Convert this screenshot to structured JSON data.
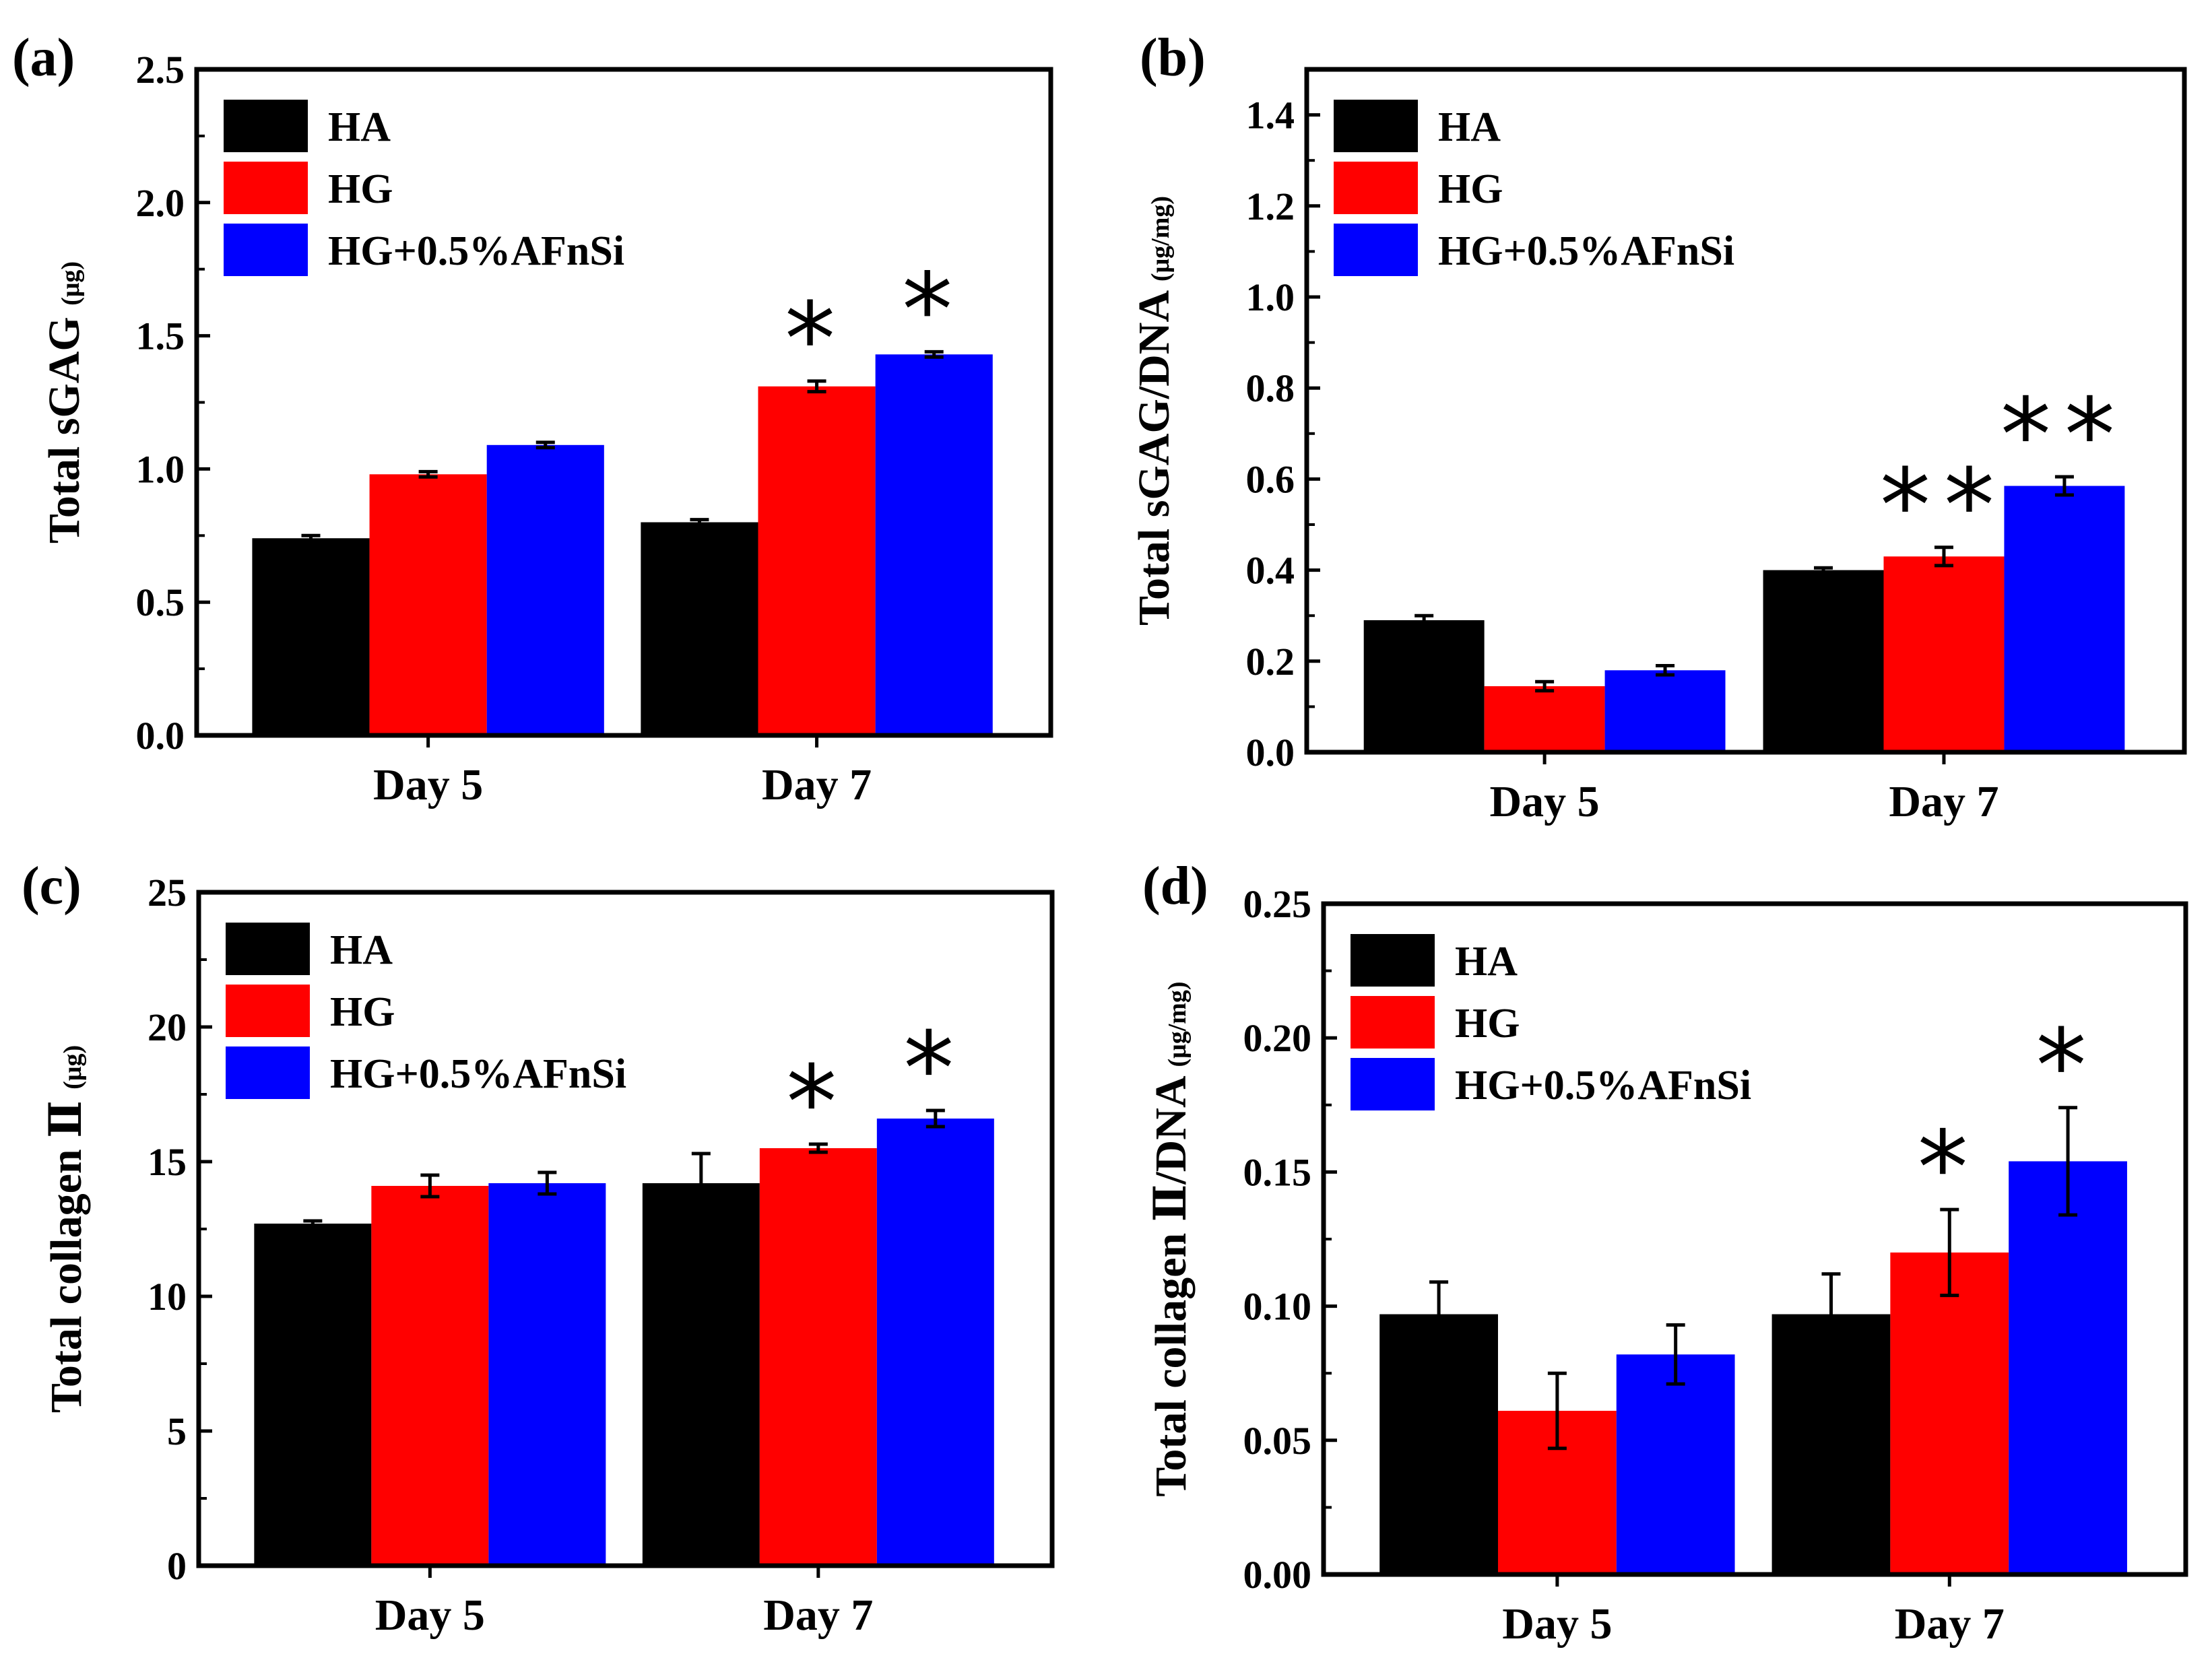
{
  "figure": {
    "legend_labels": [
      "HA",
      "HG",
      "HG+0.5%AFnSi"
    ],
    "series_colors": [
      "#000000",
      "#ff0000",
      "#0000ff"
    ]
  },
  "chart_data": [
    {
      "panel_label": "(a)",
      "type": "bar",
      "categories": [
        "Day 5",
        "Day 7"
      ],
      "series": [
        {
          "name": "HA",
          "values": [
            0.74,
            0.8
          ],
          "errors": [
            0.01,
            0.01
          ]
        },
        {
          "name": "HG",
          "values": [
            0.98,
            1.31
          ],
          "errors": [
            0.01,
            0.02
          ]
        },
        {
          "name": "HG+0.5%AFnSi",
          "values": [
            1.09,
            1.43
          ],
          "errors": [
            0.01,
            0.01
          ]
        }
      ],
      "annotations": [
        {
          "category": "Day 7",
          "series": "HG",
          "text": "*"
        },
        {
          "category": "Day 7",
          "series": "HG+0.5%AFnSi",
          "text": "*"
        }
      ],
      "ylabel": "Total sGAG",
      "ylabel_unit": "(μg)",
      "ylim": [
        0,
        2.5
      ],
      "yticks": [
        "0.0",
        "0.5",
        "1.0",
        "1.5",
        "2.0",
        "2.5"
      ],
      "legend": "top-left"
    },
    {
      "panel_label": "(b)",
      "type": "bar",
      "categories": [
        "Day 5",
        "Day 7"
      ],
      "series": [
        {
          "name": "HA",
          "values": [
            0.29,
            0.4
          ],
          "errors": [
            0.01,
            0.005
          ]
        },
        {
          "name": "HG",
          "values": [
            0.145,
            0.43
          ],
          "errors": [
            0.01,
            0.02
          ]
        },
        {
          "name": "HG+0.5%AFnSi",
          "values": [
            0.18,
            0.585
          ],
          "errors": [
            0.01,
            0.02
          ]
        }
      ],
      "annotations": [
        {
          "category": "Day 7",
          "series": "HG",
          "text": "**"
        },
        {
          "category": "Day 7",
          "series": "HG+0.5%AFnSi",
          "text": "**"
        }
      ],
      "ylabel": "Total sGAG/DNA",
      "ylabel_unit": "(μg/mg)",
      "ylim": [
        0,
        1.5
      ],
      "yticks": [
        "0.0",
        "0.2",
        "0.4",
        "0.6",
        "0.8",
        "1.0",
        "1.2",
        "1.4"
      ],
      "legend": "top-left"
    },
    {
      "panel_label": "(c)",
      "type": "bar",
      "categories": [
        "Day 5",
        "Day 7"
      ],
      "series": [
        {
          "name": "HA",
          "values": [
            12.7,
            14.2
          ],
          "errors": [
            0.1,
            1.1
          ]
        },
        {
          "name": "HG",
          "values": [
            14.1,
            15.5
          ],
          "errors": [
            0.4,
            0.15
          ]
        },
        {
          "name": "HG+0.5%AFnSi",
          "values": [
            14.2,
            16.6
          ],
          "errors": [
            0.4,
            0.3
          ]
        }
      ],
      "annotations": [
        {
          "category": "Day 7",
          "series": "HG",
          "text": "*"
        },
        {
          "category": "Day 7",
          "series": "HG+0.5%AFnSi",
          "text": "*"
        }
      ],
      "ylabel": "Total collagen Ⅱ",
      "ylabel_unit": "(μg)",
      "ylim": [
        0,
        25
      ],
      "yticks": [
        "0",
        "5",
        "10",
        "15",
        "20",
        "25"
      ],
      "legend": "top-left"
    },
    {
      "panel_label": "(d)",
      "type": "bar",
      "categories": [
        "Day 5",
        "Day 7"
      ],
      "series": [
        {
          "name": "HA",
          "values": [
            0.097,
            0.097
          ],
          "errors": [
            0.012,
            0.015
          ]
        },
        {
          "name": "HG",
          "values": [
            0.061,
            0.12
          ],
          "errors": [
            0.014,
            0.016
          ]
        },
        {
          "name": "HG+0.5%AFnSi",
          "values": [
            0.082,
            0.154
          ],
          "errors": [
            0.011,
            0.02
          ]
        }
      ],
      "annotations": [
        {
          "category": "Day 7",
          "series": "HG",
          "text": "*"
        },
        {
          "category": "Day 7",
          "series": "HG+0.5%AFnSi",
          "text": "*"
        }
      ],
      "ylabel": "Total collagen Ⅱ/DNA",
      "ylabel_unit": "(μg/mg)",
      "ylim": [
        0,
        0.25
      ],
      "yticks": [
        "0.00",
        "0.05",
        "0.10",
        "0.15",
        "0.20",
        "0.25"
      ],
      "legend": "top-left"
    }
  ]
}
